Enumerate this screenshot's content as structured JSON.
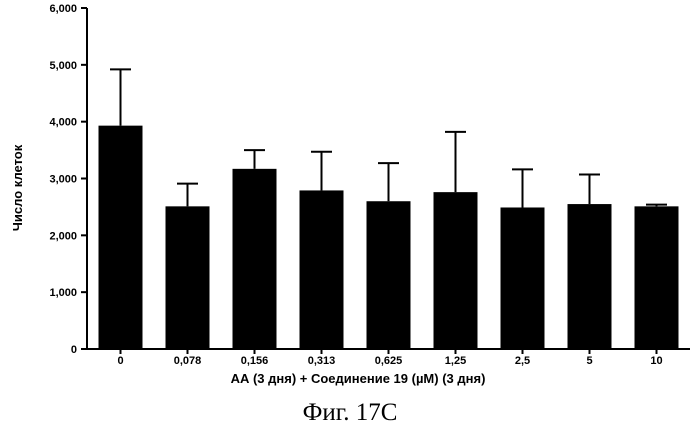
{
  "chart_data": {
    "type": "bar",
    "title": "",
    "xlabel": "АА (3 дня)  + Соединение 19 (µM) (3 дня)",
    "ylabel": "Число клеток",
    "caption": "Фиг. 17С",
    "categories": [
      "0",
      "0,078",
      "0,156",
      "0,313",
      "0,625",
      "1,25",
      "2,5",
      "5",
      "10"
    ],
    "values": [
      3930,
      2510,
      3170,
      2790,
      2600,
      2760,
      2490,
      2550,
      2510
    ],
    "error_upper": [
      4920,
      2910,
      3500,
      3470,
      3270,
      3820,
      3160,
      3070,
      2540
    ],
    "ylim": [
      0,
      6000
    ],
    "yticks": [
      0,
      1000,
      2000,
      3000,
      4000,
      5000,
      6000
    ],
    "ytick_labels": [
      "0",
      "1,000",
      "2,000",
      "3,000",
      "4,000",
      "5,000",
      "6,000"
    ],
    "grid": false,
    "legend": "none",
    "bar_color": "#000000"
  }
}
